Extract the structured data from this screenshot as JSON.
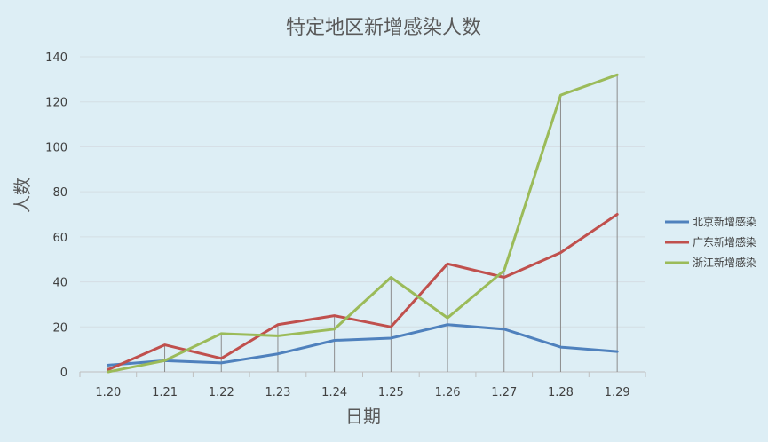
{
  "chart_data": {
    "type": "line",
    "title": "特定地区新增感染人数",
    "xlabel": "日期",
    "ylabel": "人数",
    "categories": [
      "1.20",
      "1.21",
      "1.22",
      "1.23",
      "1.24",
      "1.25",
      "1.26",
      "1.27",
      "1.28",
      "1.29"
    ],
    "ylim": [
      0,
      140
    ],
    "yticks": [
      0,
      20,
      40,
      60,
      80,
      100,
      120,
      140
    ],
    "grid": true,
    "drop_lines": true,
    "legend_position": "right",
    "series": [
      {
        "name": "北京新增感染",
        "color": "#4f81bd",
        "values": [
          3,
          5,
          4,
          8,
          14,
          15,
          21,
          19,
          11,
          9
        ]
      },
      {
        "name": "广东新增感染",
        "color": "#c0504d",
        "values": [
          1,
          12,
          6,
          21,
          25,
          20,
          48,
          42,
          53,
          70
        ]
      },
      {
        "name": "浙江新增感染",
        "color": "#9bbb59",
        "values": [
          0,
          5,
          17,
          16,
          19,
          42,
          24,
          45,
          123,
          132
        ]
      }
    ]
  }
}
